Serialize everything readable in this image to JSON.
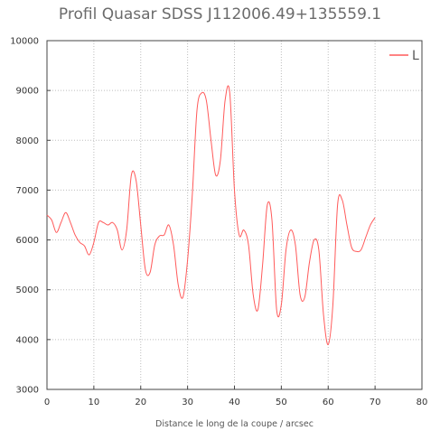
{
  "chart_data": {
    "type": "line",
    "title": "Profil Quasar SDSS J112006.49+135559.1",
    "xlabel": "Distance le long de la coupe / arcsec",
    "ylabel": "",
    "xlim": [
      0,
      80
    ],
    "ylim": [
      3000,
      10000
    ],
    "x_ticks": [
      "0",
      "10",
      "20",
      "30",
      "40",
      "50",
      "60",
      "70",
      "80"
    ],
    "y_ticks": [
      "3000",
      "4000",
      "5000",
      "6000",
      "7000",
      "8000",
      "9000",
      "10000"
    ],
    "grid": true,
    "legend_position": "top-right",
    "colors": {
      "series": "#ff5a5a",
      "grid": "#bdbdbd",
      "axis": "#444444"
    },
    "series": [
      {
        "name": "L",
        "x": [
          0,
          1,
          2,
          3,
          4,
          5,
          6,
          7,
          8,
          9,
          10,
          11,
          12,
          13,
          14,
          15,
          16,
          17,
          18,
          19,
          20,
          21,
          22,
          23,
          24,
          25,
          26,
          27,
          28,
          29,
          30,
          31,
          32,
          33,
          34,
          35,
          36,
          37,
          38,
          39,
          40,
          41,
          42,
          43,
          44,
          45,
          46,
          47,
          48,
          49,
          50,
          51,
          52,
          53,
          54,
          55,
          56,
          57,
          58,
          59,
          60,
          61,
          62,
          63,
          64,
          65,
          66,
          67,
          68,
          69,
          70
        ],
        "values": [
          6500,
          6400,
          6150,
          6350,
          6550,
          6350,
          6100,
          5950,
          5880,
          5700,
          5950,
          6350,
          6350,
          6300,
          6350,
          6200,
          5800,
          6200,
          7300,
          7200,
          6300,
          5400,
          5350,
          5900,
          6080,
          6100,
          6300,
          5900,
          5100,
          4850,
          5600,
          6900,
          8600,
          8950,
          8800,
          8000,
          7300,
          7600,
          8800,
          8950,
          7000,
          6100,
          6200,
          5900,
          4900,
          4600,
          5500,
          6700,
          6400,
          4600,
          4700,
          5800,
          6200,
          5900,
          4900,
          4850,
          5550,
          6000,
          5800,
          4500,
          3900,
          4700,
          6700,
          6800,
          6300,
          5850,
          5770,
          5800,
          6050,
          6300,
          6450
        ]
      }
    ]
  }
}
